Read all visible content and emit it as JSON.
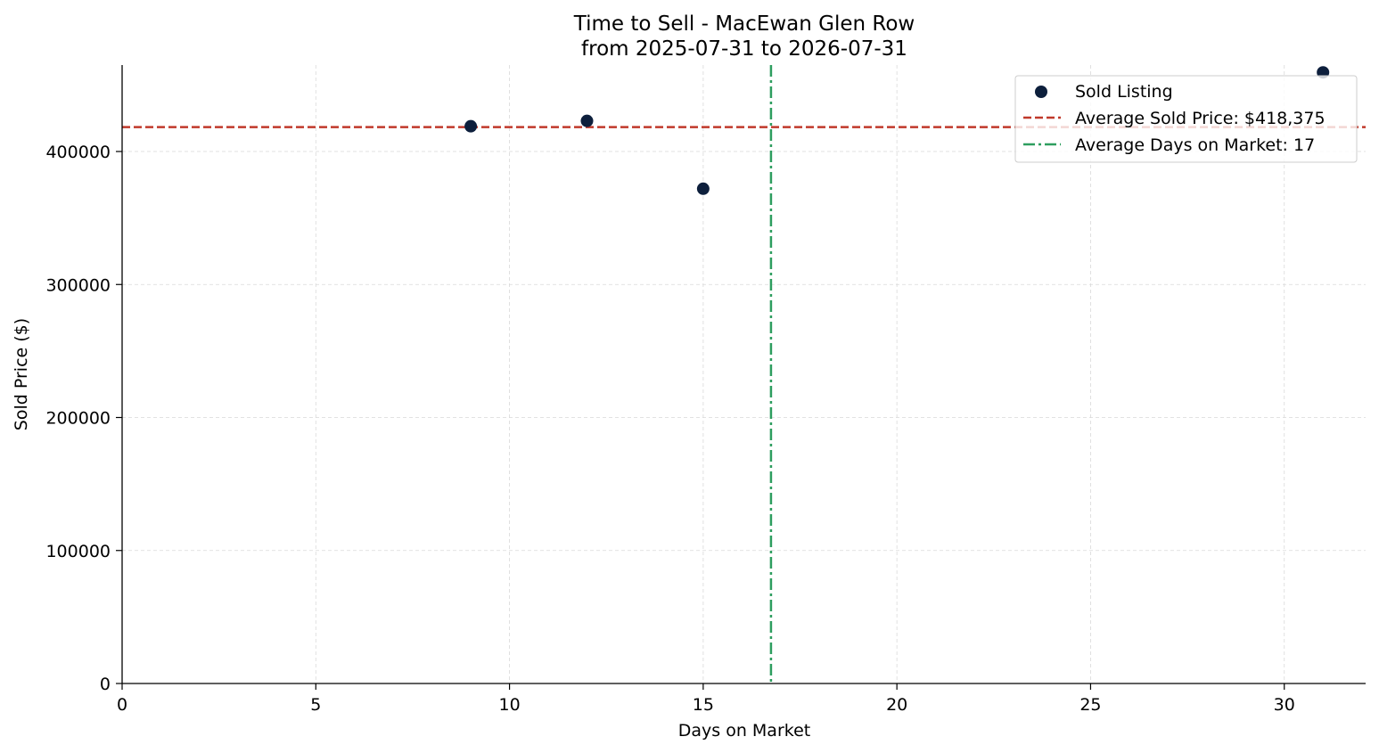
{
  "chart_data": {
    "type": "scatter",
    "title": "Time to Sell - MacEwan Glen Row",
    "subtitle": "from 2025-07-31 to 2026-07-31",
    "xlabel": "Days on Market",
    "ylabel": "Sold Price ($)",
    "xlim": [
      0,
      32.1
    ],
    "ylim": [
      0,
      465000
    ],
    "xticks": [
      0,
      5,
      10,
      15,
      20,
      25,
      30
    ],
    "yticks": [
      0,
      100000,
      200000,
      300000,
      400000
    ],
    "grid": true,
    "legend_position": "top-right",
    "series": [
      {
        "name": "Sold Listing",
        "marker": "circle",
        "color": "#0d1f3c",
        "points": [
          {
            "x": 9,
            "y": 419000
          },
          {
            "x": 12,
            "y": 423000
          },
          {
            "x": 15,
            "y": 372000
          },
          {
            "x": 31,
            "y": 459500
          }
        ]
      }
    ],
    "reference_lines": [
      {
        "name": "Average Sold Price: $418,375",
        "orientation": "horizontal",
        "value": 418375,
        "style": "dashed",
        "color": "#c0392b"
      },
      {
        "name": "Average Days on Market: 17",
        "orientation": "vertical",
        "value": 16.75,
        "style": "dashdot",
        "color": "#2e9e5f"
      }
    ]
  }
}
